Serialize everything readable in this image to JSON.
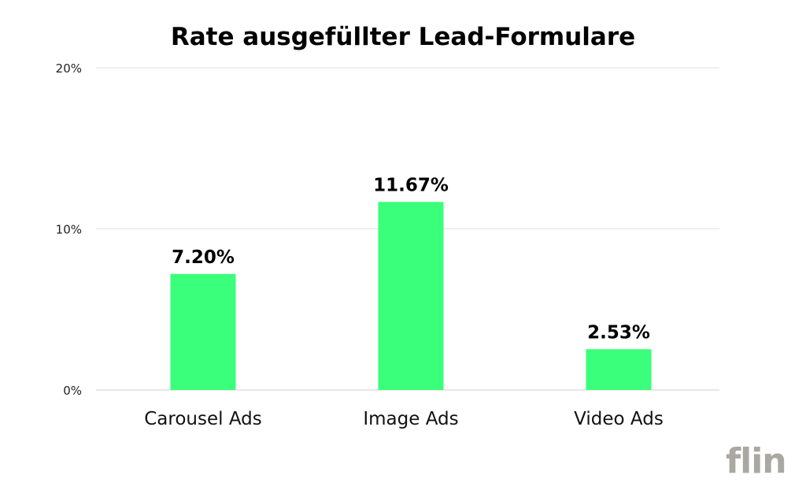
{
  "chart_data": {
    "type": "bar",
    "title": "Rate ausgefüllter Lead-Formulare",
    "categories": [
      "Carousel Ads",
      "Image Ads",
      "Video Ads"
    ],
    "values": [
      7.2,
      11.67,
      2.53
    ],
    "data_labels": [
      "7.20%",
      "11.67%",
      "2.53%"
    ],
    "xlabel": "",
    "ylabel": "",
    "ylim": [
      0,
      20
    ],
    "yticks": [
      0,
      10,
      20
    ],
    "ytick_labels": [
      "0%",
      "10%",
      "20%"
    ],
    "grid": true,
    "bar_color": "#39ff7a"
  },
  "logo": {
    "text": "flin",
    "color": "#a9a9a2"
  }
}
